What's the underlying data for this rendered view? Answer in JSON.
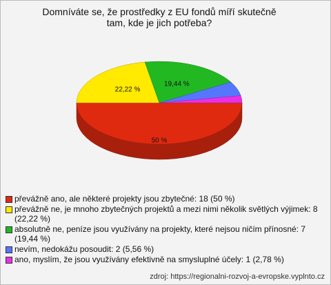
{
  "chart_data": {
    "type": "pie",
    "title": "Domníváte se, že prostředky z EU fondů míří skutečně tam, kde je jich potřeba?",
    "categories": [
      "převážně ano, ale některé projekty jsou zbytečné: 18 (50 %)",
      "převážně ne, je mnoho zbytečných projektů a mezi nimi několik světlých výjimek: 8 (22,22 %)",
      "absolutně ne, peníze jsou využívány na projekty, které nejsou ničím přínosné: 7 (19,44 %)",
      "nevím, nedokážu posoudit: 2 (5,56 %)",
      "ano, myslím, že jsou využívány efektivně na smysluplné účely: 1 (2,78 %)"
    ],
    "values": [
      50,
      22.22,
      19.44,
      5.56,
      2.78
    ],
    "value_labels": [
      "50 %",
      "22,22 %",
      "19,44 %",
      null,
      null
    ],
    "colors": [
      "#e02a10",
      "#ffea00",
      "#22b822",
      "#5577ff",
      "#e830e8"
    ],
    "source": "zdroj: https://regionalni-rozvoj-a-evropske.vyplnto.cz"
  }
}
